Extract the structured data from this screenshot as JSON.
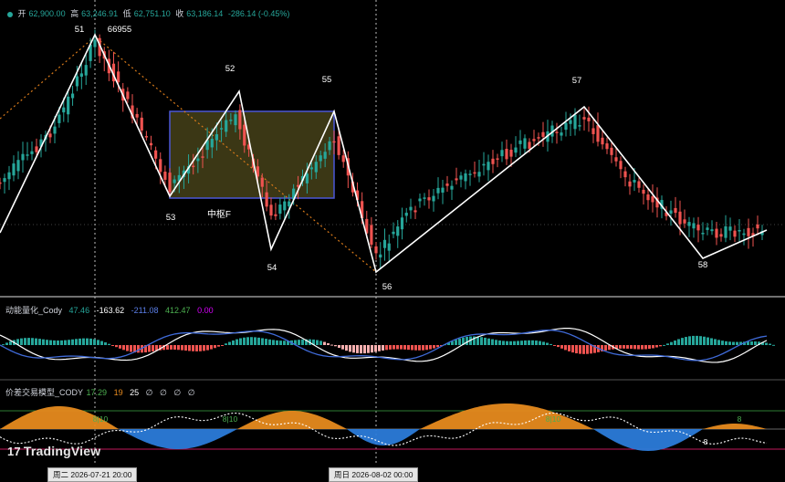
{
  "header": {
    "open_label": "开",
    "open": "62,900.00",
    "high_label": "高",
    "high": "63,246.91",
    "low_label": "低",
    "low": "62,751.10",
    "close_label": "收",
    "close": "63,186.14",
    "change": "-286.14 (-0.45%)"
  },
  "pivots": [
    {
      "label": "51",
      "price_label": "66955"
    },
    {
      "label": "52"
    },
    {
      "label": "53"
    },
    {
      "label": "54"
    },
    {
      "label": "55"
    },
    {
      "label": "56"
    },
    {
      "label": "57"
    },
    {
      "label": "58"
    }
  ],
  "zone_label": "中枢F",
  "indicator1": {
    "name": "动能量化_Cody",
    "v1": "47.46",
    "v2": "-163.62",
    "v3": "-211.08",
    "v4": "412.47",
    "v5": "0.00"
  },
  "indicator2": {
    "name": "价差交易模型_CODY",
    "v1": "17.29",
    "v2": "19",
    "v3": "25",
    "v4": "∅",
    "v5": "∅",
    "v6": "∅",
    "v7": "∅",
    "marks": [
      "8|10",
      "8|10",
      "8|10",
      "8",
      "8"
    ]
  },
  "xaxis": {
    "badge_left": "周二 2026-07-21   20:00",
    "badge_right": "周日 2026-08-02   00:00"
  },
  "branding": {
    "logo": "TradingView"
  },
  "colors": {
    "up": "#26a69a",
    "down": "#ef5350",
    "zone_border": "#4a57d6",
    "zone_fill": "#3b3715",
    "fast": "#ffffff",
    "slow": "#3f6ad8",
    "fill_orange": "#e68a1e",
    "fill_blue": "#2b7bd9"
  },
  "chart_data": {
    "type": "candlestick",
    "series": [
      {
        "name": "pivots",
        "points": [
          {
            "label": "51",
            "price": 66955
          },
          {
            "label": "52"
          },
          {
            "label": "53"
          },
          {
            "label": "54"
          },
          {
            "label": "55"
          },
          {
            "label": "56"
          },
          {
            "label": "57"
          },
          {
            "label": "58"
          }
        ]
      }
    ],
    "last": {
      "open": 62900.0,
      "high": 63246.91,
      "low": 62751.1,
      "close": 63186.14,
      "change": -286.14,
      "change_pct": -0.45
    },
    "indicators": [
      {
        "name": "动能量化_Cody",
        "values": [
          47.46,
          -163.62,
          -211.08,
          412.47,
          0.0
        ]
      },
      {
        "name": "价差交易模型_CODY",
        "values": [
          17.29,
          19,
          25
        ]
      }
    ]
  }
}
